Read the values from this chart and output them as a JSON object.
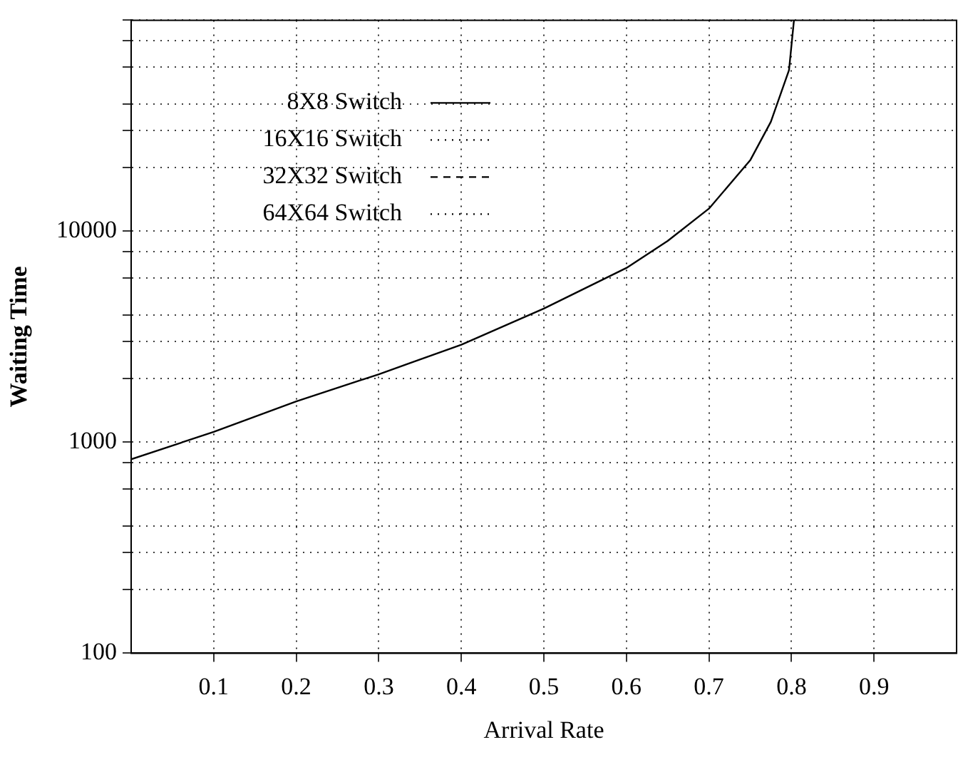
{
  "chart_data": {
    "type": "line",
    "xlabel": "Arrival Rate",
    "ylabel": "Waiting Time",
    "x": [
      0,
      0.1,
      0.2,
      0.3,
      0.4,
      0.5,
      0.6,
      0.65,
      0.7,
      0.75,
      0.775,
      0.797,
      0.803
    ],
    "series": [
      {
        "name": "8X8 Switch",
        "color": "#000000",
        "line_style": "solid",
        "values": [
          830,
          1120,
          1560,
          2100,
          2900,
          4300,
          6700,
          9000,
          12800,
          21700,
          33000,
          58000,
          100000
        ]
      },
      {
        "name": "16X16 Switch",
        "color": "#000000",
        "line_style": "dotted",
        "values": [
          null,
          null,
          null,
          null,
          null,
          null,
          null,
          null,
          null,
          null,
          null,
          null,
          null
        ]
      },
      {
        "name": "32X32 Switch",
        "color": "#000000",
        "line_style": "dashed",
        "values": [
          null,
          null,
          null,
          null,
          null,
          null,
          null,
          null,
          null,
          null,
          null,
          null,
          null
        ]
      },
      {
        "name": "64X64 Switch",
        "color": "#000000",
        "line_style": "dotted",
        "values": [
          null,
          null,
          null,
          null,
          null,
          null,
          null,
          null,
          null,
          null,
          null,
          null,
          null
        ]
      }
    ],
    "xlim": [
      0,
      1
    ],
    "xticks": [
      0.1,
      0.2,
      0.3,
      0.4,
      0.5,
      0.6,
      0.7,
      0.8,
      0.9
    ],
    "ylim": [
      100,
      100000
    ],
    "log": "y",
    "yticks": [
      100,
      {
        "value": 200,
        "label": null
      },
      {
        "value": 300,
        "label": null
      },
      {
        "value": 400,
        "label": null
      },
      {
        "value": 600,
        "label": null
      },
      {
        "value": 800,
        "label": null
      },
      1000,
      {
        "value": 2000,
        "label": null
      },
      {
        "value": 3000,
        "label": null
      },
      {
        "value": 4000,
        "label": null
      },
      {
        "value": 6000,
        "label": null
      },
      {
        "value": 8000,
        "label": null
      },
      10000,
      {
        "value": 20000,
        "label": null
      },
      {
        "value": 30000,
        "label": null
      },
      {
        "value": 40000,
        "label": null
      },
      {
        "value": 60000,
        "label": null
      },
      {
        "value": 80000,
        "label": null
      },
      {
        "value": 100000,
        "label": null
      }
    ],
    "grid": true,
    "legend": "top left",
    "marker": "none"
  }
}
